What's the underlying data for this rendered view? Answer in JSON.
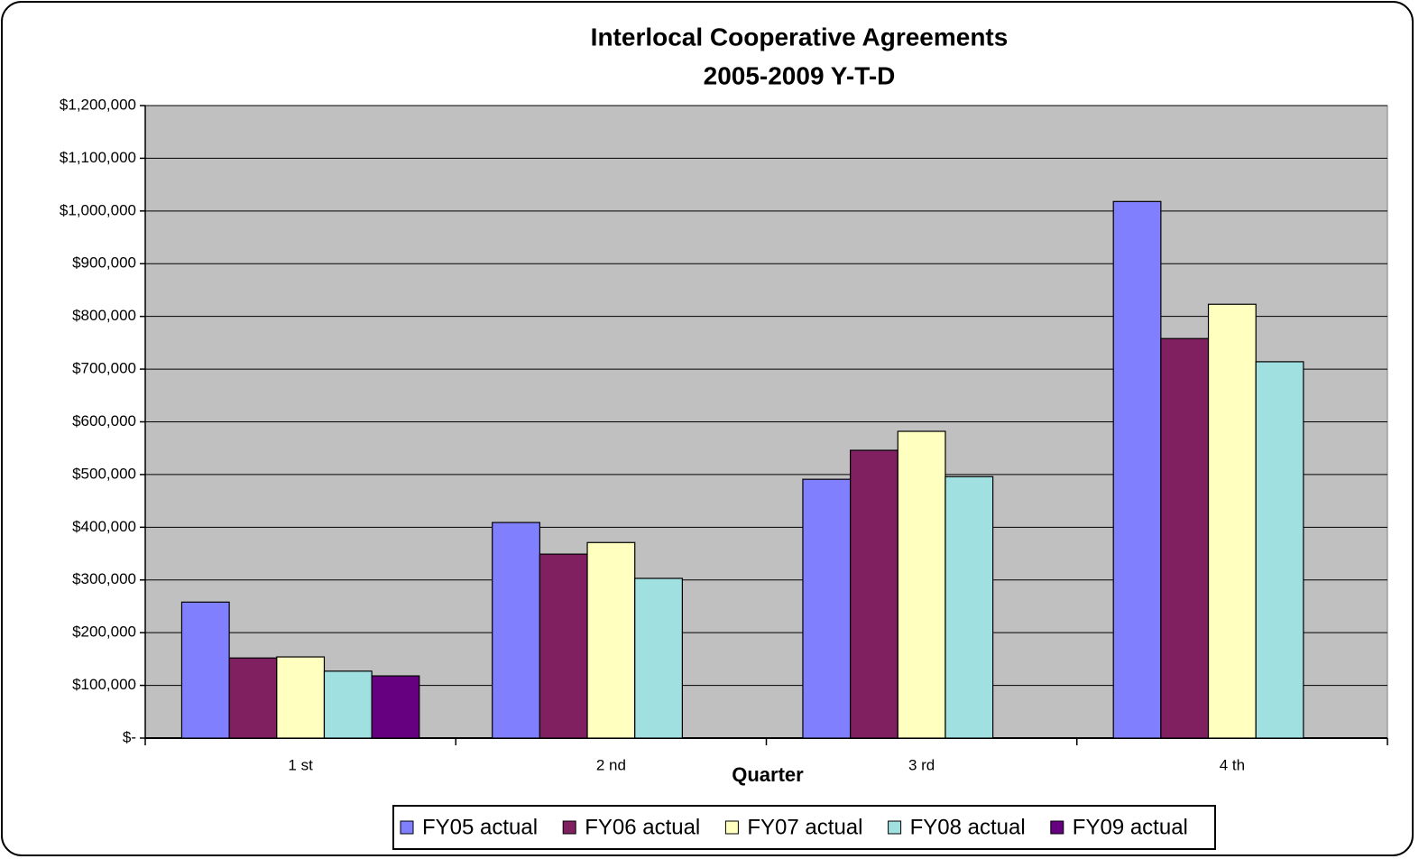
{
  "chart_data": {
    "type": "bar",
    "title": "Interlocal Cooperative Agreements",
    "subtitle": "2005-2009 Y-T-D",
    "x_label": "Quarter",
    "categories": [
      "1 st",
      "2 nd",
      "3 rd",
      "4 th"
    ],
    "series": [
      {
        "name": "FY05 actual",
        "color": "#8080ff",
        "values": [
          258000,
          409000,
          491000,
          1018000
        ]
      },
      {
        "name": "FY06 actual",
        "color": "#802060",
        "values": [
          152000,
          349000,
          546000,
          758000
        ]
      },
      {
        "name": "FY07 actual",
        "color": "#ffffc0",
        "values": [
          154000,
          371000,
          582000,
          823000
        ]
      },
      {
        "name": "FY08 actual",
        "color": "#a0e0e0",
        "values": [
          127000,
          303000,
          496000,
          714000
        ]
      },
      {
        "name": "FY09 actual",
        "color": "#660080",
        "values": [
          118000,
          null,
          null,
          null
        ]
      }
    ],
    "ylim": [
      0,
      1200000
    ],
    "yticks": [
      {
        "value": 0,
        "label": "$-"
      },
      {
        "value": 100000,
        "label": "$100,000"
      },
      {
        "value": 200000,
        "label": "$200,000"
      },
      {
        "value": 300000,
        "label": "$300,000"
      },
      {
        "value": 400000,
        "label": "$400,000"
      },
      {
        "value": 500000,
        "label": "$500,000"
      },
      {
        "value": 600000,
        "label": "$600,000"
      },
      {
        "value": 700000,
        "label": "$700,000"
      },
      {
        "value": 800000,
        "label": "$800,000"
      },
      {
        "value": 900000,
        "label": "$900,000"
      },
      {
        "value": 1000000,
        "label": "$1,000,000"
      },
      {
        "value": 1100000,
        "label": "$1,100,000"
      },
      {
        "value": 1200000,
        "label": "$1,200,000"
      }
    ],
    "grid": true,
    "plot_background": "#c0c0c0",
    "legend": "bottom"
  }
}
